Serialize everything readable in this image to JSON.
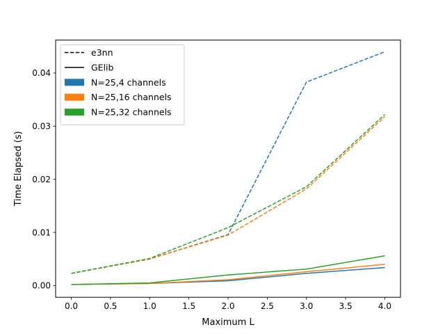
{
  "chart_data": {
    "type": "line",
    "title": "",
    "xlabel": "Maximum L",
    "ylabel": "Time Elapsed (s)",
    "xlim": [
      -0.2,
      4.2
    ],
    "ylim": [
      -0.0022,
      0.0462
    ],
    "xticks": [
      "0.0",
      "0.5",
      "1.0",
      "1.5",
      "2.0",
      "2.5",
      "3.0",
      "3.5",
      "4.0"
    ],
    "xtick_values": [
      0,
      0.5,
      1,
      1.5,
      2,
      2.5,
      3,
      3.5,
      4
    ],
    "yticks": [
      "0.00",
      "0.01",
      "0.02",
      "0.03",
      "0.04"
    ],
    "ytick_values": [
      0,
      0.01,
      0.02,
      0.03,
      0.04
    ],
    "grid": false,
    "legend_position": "top-left",
    "legend": [
      {
        "label": "e3nn",
        "style": "dashed",
        "color": "#000000"
      },
      {
        "label": "GElib",
        "style": "solid",
        "color": "#000000"
      },
      {
        "label": "N=25,4 channels",
        "style": "patch",
        "color": "#1f77b4"
      },
      {
        "label": "N=25,16 channels",
        "style": "patch",
        "color": "#ff7f0e"
      },
      {
        "label": "N=25,32 channels",
        "style": "patch",
        "color": "#2ca02c"
      }
    ],
    "x": [
      0,
      1,
      2,
      3,
      4
    ],
    "series": [
      {
        "library": "e3nn",
        "channels": "N=25,4 channels",
        "color": "#1f77b4",
        "dash": true,
        "values": [
          0.0023,
          0.005,
          0.0096,
          0.0383,
          0.044
        ]
      },
      {
        "library": "e3nn",
        "channels": "N=25,16 channels",
        "color": "#ff7f0e",
        "dash": true,
        "values": [
          0.0023,
          0.005,
          0.0095,
          0.0182,
          0.0318
        ]
      },
      {
        "library": "e3nn",
        "channels": "N=25,32 channels",
        "color": "#2ca02c",
        "dash": true,
        "values": [
          0.0023,
          0.0051,
          0.0109,
          0.0186,
          0.0322
        ]
      },
      {
        "library": "GElib",
        "channels": "N=25,4 channels",
        "color": "#1f77b4",
        "dash": false,
        "values": [
          0.0002,
          0.0004,
          0.0009,
          0.0023,
          0.0034
        ]
      },
      {
        "library": "GElib",
        "channels": "N=25,16 channels",
        "color": "#ff7f0e",
        "dash": false,
        "values": [
          0.0002,
          0.0004,
          0.0011,
          0.0026,
          0.004
        ]
      },
      {
        "library": "GElib",
        "channels": "N=25,32 channels",
        "color": "#2ca02c",
        "dash": false,
        "values": [
          0.0002,
          0.0005,
          0.002,
          0.0031,
          0.0056
        ]
      }
    ]
  }
}
